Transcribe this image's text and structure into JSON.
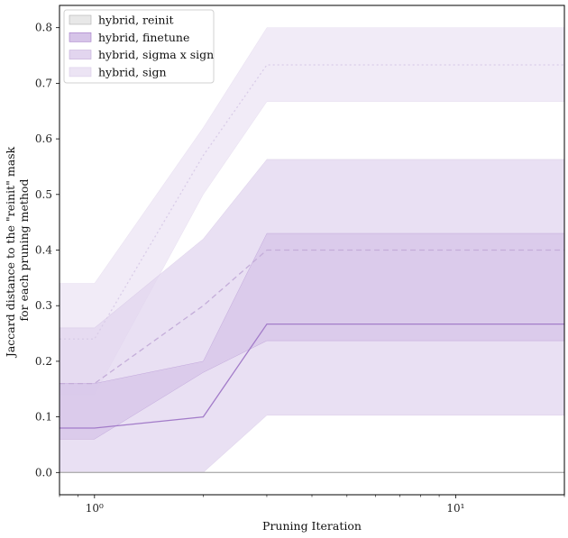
{
  "chart_data": {
    "type": "line",
    "xscale": "log",
    "xlabel": "Pruning Iteration",
    "ylabel": [
      "Jaccard distance to the \"reinit\" mask",
      "for each pruning method"
    ],
    "xlim": [
      0.8,
      20
    ],
    "ylim": [
      -0.04,
      0.84
    ],
    "yticks": [
      0.0,
      0.1,
      0.2,
      0.3,
      0.4,
      0.5,
      0.6,
      0.7,
      0.8
    ],
    "ytick_labels": [
      "0.0",
      "0.1",
      "0.2",
      "0.3",
      "0.4",
      "0.5",
      "0.6",
      "0.7",
      "0.8"
    ],
    "xticks": [
      1,
      10
    ],
    "xtick_labels": [
      "10⁰",
      "10¹"
    ],
    "grid": false,
    "legend_position": "top-left",
    "x": [
      0.8,
      1,
      2,
      3,
      20
    ],
    "series": [
      {
        "name": "hybrid, reinit",
        "color": "#b0b0b0",
        "fill": "#e8e8e8",
        "dash": "solid",
        "mean": [
          0,
          0,
          0,
          0,
          0
        ],
        "lower": [
          0,
          0,
          0,
          0,
          0
        ],
        "upper": [
          0,
          0,
          0,
          0,
          0
        ]
      },
      {
        "name": "hybrid, finetune",
        "color": "#a37cc9",
        "fill": "#d6c4e8",
        "dash": "solid",
        "mean": [
          0.08,
          0.08,
          0.1,
          0.267,
          0.267
        ],
        "lower": [
          0.06,
          0.06,
          0.18,
          0.237,
          0.237
        ],
        "upper": [
          0.16,
          0.16,
          0.2,
          0.43,
          0.43
        ]
      },
      {
        "name": "hybrid, sigma x sign",
        "color": "#c4add9",
        "fill": "#e2d5ef",
        "dash": "dashed",
        "mean": [
          0.16,
          0.16,
          0.3,
          0.4,
          0.4
        ],
        "lower": [
          0.0,
          0.0,
          0.0,
          0.103,
          0.103
        ],
        "upper": [
          0.26,
          0.26,
          0.42,
          0.563,
          0.563
        ]
      },
      {
        "name": "hybrid, sign",
        "color": "#d9cce8",
        "fill": "#ece4f4",
        "dash": "dotted",
        "mean": [
          0.24,
          0.24,
          0.57,
          0.733,
          0.733
        ],
        "lower": [
          0.14,
          0.14,
          0.5,
          0.667,
          0.667
        ],
        "upper": [
          0.34,
          0.34,
          0.62,
          0.8,
          0.8
        ]
      }
    ]
  }
}
